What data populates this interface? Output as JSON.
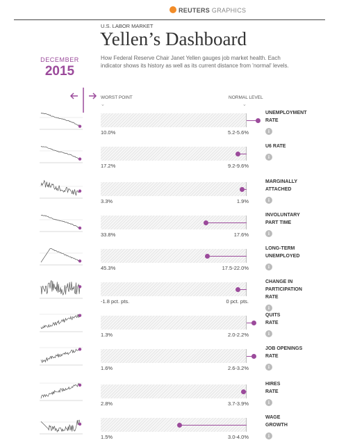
{
  "brand": {
    "name": "REUTERS",
    "suffix": "GRAPHICS"
  },
  "header": {
    "kicker": "U.S. LABOR MARKET",
    "title": "Yellen’s Dashboard",
    "subtitle": "How Federal Reserve Chair Janet Yellen gauges job market health. Each indicator shows its history as well as its current distance from 'normal' levels."
  },
  "date": {
    "month": "DECEMBER",
    "year": "2015"
  },
  "columns": {
    "worst": "WORST POINT",
    "normal": "NORMAL LEVEL"
  },
  "colors": {
    "accent": "#9b4a9b",
    "track": "#f2f2f2",
    "text": "#444444"
  },
  "indicators": [
    {
      "label_lines": [
        "UNEMPLOYMENT",
        "RATE"
      ],
      "worst": "10.0%",
      "normal": "5.2-5.6%",
      "current_position": 1.08,
      "spark": "falling"
    },
    {
      "label_lines": [
        "U6 RATE"
      ],
      "worst": "17.2%",
      "normal": "9.2-9.6%",
      "current_position": 0.94,
      "spark": "falling"
    },
    {
      "label_lines": [
        "MARGINALLY",
        "ATTACHED"
      ],
      "worst": "3.3%",
      "normal": "1.9%",
      "current_position": 0.97,
      "spark": "noisy-falling"
    },
    {
      "label_lines": [
        "INVOLUNTARY",
        "PART TIME"
      ],
      "worst": "33.8%",
      "normal": "17.6%",
      "current_position": 0.72,
      "spark": "falling"
    },
    {
      "label_lines": [
        "LONG-TERM",
        "UNEMPLOYED"
      ],
      "worst": "45.3%",
      "normal": "17.5-22.0%",
      "current_position": 0.73,
      "spark": "hump"
    },
    {
      "label_lines": [
        "CHANGE IN",
        "PARTICIPATION",
        "RATE"
      ],
      "worst": "-1.8 pct. pts.",
      "normal": "0 pct. pts.",
      "current_position": 0.94,
      "spark": "noisy"
    },
    {
      "label_lines": [
        "QUITS",
        "RATE"
      ],
      "worst": "1.3%",
      "normal": "2.0-2.2%",
      "current_position": 1.05,
      "spark": "rising"
    },
    {
      "label_lines": [
        "JOB OPENINGS",
        "RATE"
      ],
      "worst": "1.6%",
      "normal": "2.6-3.2%",
      "current_position": 1.05,
      "spark": "rising"
    },
    {
      "label_lines": [
        "HIRES",
        "RATE"
      ],
      "worst": "2.8%",
      "normal": "3.7-3.9%",
      "current_position": 0.98,
      "spark": "rising"
    },
    {
      "label_lines": [
        "WAGE",
        "GROWTH"
      ],
      "worst": "1.5%",
      "normal": "3.0-4.0%",
      "current_position": 0.54,
      "spark": "dip-noisy"
    }
  ]
}
